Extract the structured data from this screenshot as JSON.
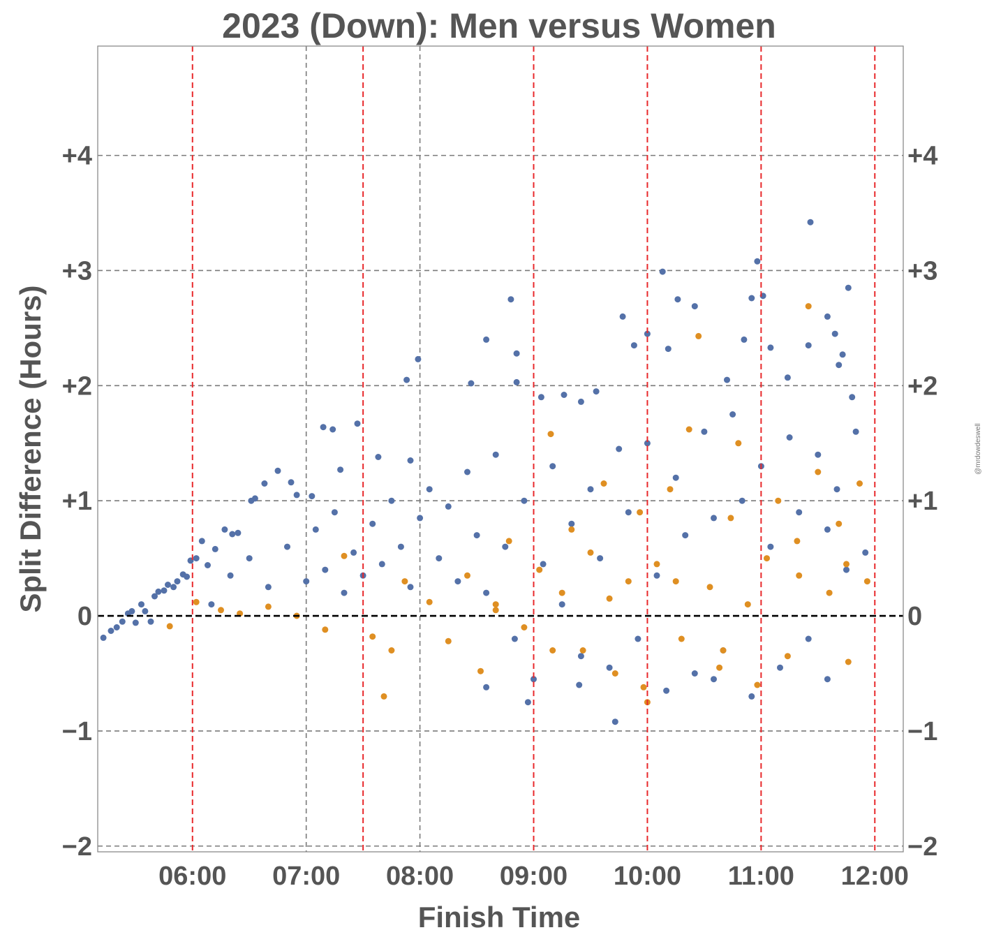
{
  "chart_data": {
    "type": "scatter",
    "title": "2023 (Down): Men versus Women",
    "xlabel": "Finish Time",
    "ylabel": "Split Difference (Hours)",
    "watermark": "@mrdowdeswell",
    "xlim": [
      "05:10",
      "12:15"
    ],
    "ylim": [
      -2.05,
      4.95
    ],
    "x_ticks": [
      "06:00",
      "07:00",
      "08:00",
      "09:00",
      "10:00",
      "11:00",
      "12:00"
    ],
    "y_ticks": [
      "+4",
      "+3",
      "+2",
      "+1",
      "0",
      "−1",
      "−2"
    ],
    "y_tick_values": [
      4,
      3,
      2,
      1,
      0,
      -1,
      -2
    ],
    "grid": {
      "horizontal_dashed_gray_at": [
        4,
        3,
        2,
        1,
        -1,
        -2
      ],
      "zero_line": {
        "y": 0,
        "color": "#000000",
        "style": "dashed"
      },
      "vertical_dashed_gray_at": [
        "07:00",
        "08:00"
      ],
      "vertical_dashed_red_at": [
        "06:00",
        "07:30",
        "09:00",
        "10:00",
        "11:00",
        "12:00"
      ]
    },
    "colors": {
      "men": "#5471a8",
      "women": "#df8f22",
      "red_line": "#e8282b",
      "grid": "#7a7a7a"
    },
    "series": [
      {
        "color": "#5471a8",
        "points": [
          [
            "05:13",
            -0.19
          ],
          [
            "05:17",
            -0.13
          ],
          [
            "05:20",
            -0.1
          ],
          [
            "05:23",
            -0.05
          ],
          [
            "05:26",
            0.02
          ],
          [
            "05:28",
            0.04
          ],
          [
            "05:30",
            -0.06
          ],
          [
            "05:33",
            0.1
          ],
          [
            "05:35",
            0.04
          ],
          [
            "05:38",
            -0.05
          ],
          [
            "05:40",
            0.17
          ],
          [
            "05:42",
            0.21
          ],
          [
            "05:45",
            0.22
          ],
          [
            "05:47",
            0.27
          ],
          [
            "05:50",
            0.25
          ],
          [
            "05:52",
            0.3
          ],
          [
            "05:55",
            0.36
          ],
          [
            "05:57",
            0.34
          ],
          [
            "05:59",
            0.48
          ],
          [
            "06:02",
            0.5
          ],
          [
            "06:05",
            0.65
          ],
          [
            "06:08",
            0.44
          ],
          [
            "06:12",
            0.58
          ],
          [
            "06:17",
            0.75
          ],
          [
            "06:21",
            0.71
          ],
          [
            "06:24",
            0.72
          ],
          [
            "06:31",
            1.0
          ],
          [
            "06:33",
            1.02
          ],
          [
            "06:38",
            1.15
          ],
          [
            "06:45",
            1.26
          ],
          [
            "06:52",
            1.16
          ],
          [
            "06:55",
            1.05
          ],
          [
            "07:03",
            1.04
          ],
          [
            "07:09",
            1.64
          ],
          [
            "07:14",
            1.62
          ],
          [
            "07:18",
            1.27
          ],
          [
            "07:27",
            1.67
          ],
          [
            "07:38",
            1.38
          ],
          [
            "07:55",
            1.35
          ],
          [
            "07:59",
            2.23
          ],
          [
            "07:53",
            2.05
          ],
          [
            "08:27",
            2.02
          ],
          [
            "08:35",
            2.4
          ],
          [
            "08:48",
            2.75
          ],
          [
            "08:51",
            2.28
          ],
          [
            "08:51",
            2.03
          ],
          [
            "09:04",
            1.9
          ],
          [
            "09:16",
            1.92
          ],
          [
            "09:25",
            1.86
          ],
          [
            "09:33",
            1.95
          ],
          [
            "09:47",
            2.6
          ],
          [
            "09:53",
            2.35
          ],
          [
            "10:00",
            2.45
          ],
          [
            "10:08",
            2.99
          ],
          [
            "10:11",
            2.32
          ],
          [
            "10:16",
            2.75
          ],
          [
            "10:25",
            2.69
          ],
          [
            "10:42",
            2.05
          ],
          [
            "10:51",
            2.4
          ],
          [
            "10:55",
            2.76
          ],
          [
            "10:58",
            3.08
          ],
          [
            "11:01",
            2.78
          ],
          [
            "11:05",
            2.33
          ],
          [
            "11:14",
            2.07
          ],
          [
            "11:26",
            3.42
          ],
          [
            "11:25",
            2.35
          ],
          [
            "11:35",
            2.6
          ],
          [
            "11:39",
            2.45
          ],
          [
            "11:41",
            2.18
          ],
          [
            "11:43",
            2.27
          ],
          [
            "11:46",
            2.85
          ],
          [
            "11:48",
            1.9
          ],
          [
            "06:10",
            0.1
          ],
          [
            "06:20",
            0.35
          ],
          [
            "06:30",
            0.5
          ],
          [
            "06:40",
            0.25
          ],
          [
            "06:50",
            0.6
          ],
          [
            "07:00",
            0.3
          ],
          [
            "07:05",
            0.75
          ],
          [
            "07:10",
            0.4
          ],
          [
            "07:15",
            0.9
          ],
          [
            "07:20",
            0.2
          ],
          [
            "07:25",
            0.55
          ],
          [
            "07:30",
            0.35
          ],
          [
            "07:35",
            0.8
          ],
          [
            "07:40",
            0.45
          ],
          [
            "07:45",
            1.0
          ],
          [
            "07:50",
            0.6
          ],
          [
            "07:55",
            0.25
          ],
          [
            "08:00",
            0.85
          ],
          [
            "08:05",
            1.1
          ],
          [
            "08:10",
            0.5
          ],
          [
            "08:15",
            0.95
          ],
          [
            "08:20",
            0.3
          ],
          [
            "08:25",
            1.25
          ],
          [
            "08:30",
            0.7
          ],
          [
            "08:35",
            0.2
          ],
          [
            "08:40",
            1.4
          ],
          [
            "08:45",
            0.6
          ],
          [
            "08:50",
            -0.2
          ],
          [
            "08:55",
            1.0
          ],
          [
            "09:00",
            -0.55
          ],
          [
            "09:05",
            0.45
          ],
          [
            "09:10",
            1.3
          ],
          [
            "09:15",
            0.1
          ],
          [
            "09:20",
            0.8
          ],
          [
            "09:25",
            -0.35
          ],
          [
            "09:30",
            1.1
          ],
          [
            "09:35",
            0.5
          ],
          [
            "09:40",
            -0.45
          ],
          [
            "09:45",
            1.45
          ],
          [
            "09:50",
            0.9
          ],
          [
            "09:55",
            -0.2
          ],
          [
            "10:00",
            1.5
          ],
          [
            "10:05",
            0.35
          ],
          [
            "10:10",
            -0.65
          ],
          [
            "10:15",
            1.2
          ],
          [
            "10:20",
            0.7
          ],
          [
            "10:25",
            -0.5
          ],
          [
            "10:30",
            1.6
          ],
          [
            "10:35",
            0.85
          ],
          [
            "10:40",
            -0.3
          ],
          [
            "10:45",
            1.75
          ],
          [
            "10:50",
            1.0
          ],
          [
            "10:55",
            -0.7
          ],
          [
            "11:00",
            1.3
          ],
          [
            "11:05",
            0.6
          ],
          [
            "11:10",
            -0.45
          ],
          [
            "11:15",
            1.55
          ],
          [
            "11:20",
            0.9
          ],
          [
            "11:25",
            -0.2
          ],
          [
            "11:30",
            1.4
          ],
          [
            "11:35",
            0.75
          ],
          [
            "11:40",
            1.1
          ],
          [
            "11:45",
            0.4
          ],
          [
            "11:50",
            1.6
          ],
          [
            "11:55",
            0.55
          ],
          [
            "09:43",
            -0.92
          ],
          [
            "08:57",
            -0.75
          ],
          [
            "09:24",
            -0.6
          ],
          [
            "08:35",
            -0.62
          ],
          [
            "10:35",
            -0.55
          ],
          [
            "11:35",
            -0.55
          ]
        ]
      },
      {
        "color": "#df8f22",
        "points": [
          [
            "05:48",
            -0.09
          ],
          [
            "06:02",
            0.12
          ],
          [
            "06:15",
            0.05
          ],
          [
            "06:25",
            0.02
          ],
          [
            "06:40",
            0.08
          ],
          [
            "06:55",
            0.0
          ],
          [
            "07:10",
            -0.12
          ],
          [
            "07:20",
            0.52
          ],
          [
            "07:35",
            -0.18
          ],
          [
            "07:41",
            -0.7
          ],
          [
            "07:45",
            -0.3
          ],
          [
            "07:52",
            0.3
          ],
          [
            "08:05",
            0.12
          ],
          [
            "08:15",
            -0.22
          ],
          [
            "08:25",
            0.35
          ],
          [
            "08:32",
            -0.48
          ],
          [
            "08:40",
            0.1
          ],
          [
            "08:47",
            0.65
          ],
          [
            "08:55",
            -0.1
          ],
          [
            "09:03",
            0.4
          ],
          [
            "09:09",
            1.58
          ],
          [
            "09:15",
            0.2
          ],
          [
            "09:20",
            0.75
          ],
          [
            "09:26",
            -0.3
          ],
          [
            "09:30",
            0.55
          ],
          [
            "09:37",
            1.15
          ],
          [
            "09:43",
            -0.5
          ],
          [
            "09:50",
            0.3
          ],
          [
            "09:56",
            0.9
          ],
          [
            "10:00",
            -0.75
          ],
          [
            "10:05",
            0.45
          ],
          [
            "10:12",
            1.1
          ],
          [
            "10:18",
            -0.2
          ],
          [
            "10:22",
            1.62
          ],
          [
            "10:27",
            2.43
          ],
          [
            "10:33",
            0.25
          ],
          [
            "10:38",
            -0.45
          ],
          [
            "10:44",
            0.85
          ],
          [
            "10:48",
            1.5
          ],
          [
            "10:53",
            0.1
          ],
          [
            "10:58",
            -0.6
          ],
          [
            "11:03",
            0.5
          ],
          [
            "11:09",
            1.0
          ],
          [
            "11:14",
            -0.35
          ],
          [
            "11:19",
            0.65
          ],
          [
            "11:25",
            2.69
          ],
          [
            "11:30",
            1.25
          ],
          [
            "11:36",
            0.2
          ],
          [
            "11:41",
            0.8
          ],
          [
            "11:46",
            -0.4
          ],
          [
            "11:52",
            1.15
          ],
          [
            "11:56",
            0.3
          ],
          [
            "09:58",
            -0.62
          ],
          [
            "09:10",
            -0.3
          ],
          [
            "10:40",
            -0.3
          ],
          [
            "11:20",
            0.35
          ],
          [
            "11:45",
            0.45
          ],
          [
            "10:15",
            0.3
          ],
          [
            "09:40",
            0.15
          ],
          [
            "08:40",
            0.05
          ]
        ]
      }
    ]
  }
}
